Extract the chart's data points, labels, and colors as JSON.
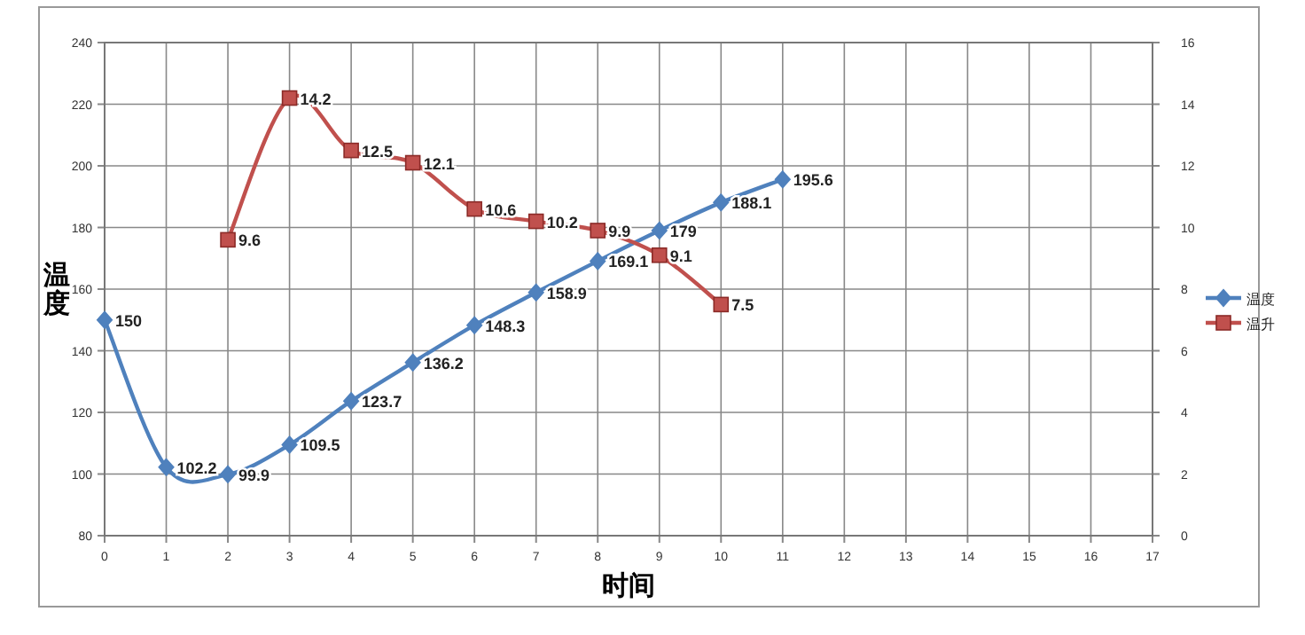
{
  "chart_data": {
    "type": "line",
    "xlabel": "时间",
    "ylabel": "温度",
    "xlim": [
      0,
      17
    ],
    "xticks": [
      0,
      1,
      2,
      3,
      4,
      5,
      6,
      7,
      8,
      9,
      10,
      11,
      12,
      13,
      14,
      15,
      16,
      17
    ],
    "ylim": [
      80,
      240
    ],
    "yticks": [
      80,
      100,
      120,
      140,
      160,
      180,
      200,
      220,
      240
    ],
    "y2lim": [
      0,
      16
    ],
    "y2ticks": [
      0,
      2,
      4,
      6,
      8,
      10,
      12,
      14,
      16
    ],
    "grid": true,
    "legend": "right",
    "data_labels": true,
    "series": [
      {
        "name": "温度",
        "color": "#4f81bd",
        "marker": "diamond",
        "x": [
          0,
          1,
          2,
          3,
          4,
          5,
          6,
          7,
          8,
          9,
          10,
          11
        ],
        "values": [
          150,
          102.2,
          99.9,
          109.5,
          123.7,
          136.2,
          148.3,
          158.9,
          169.1,
          179,
          188.1,
          195.6
        ]
      },
      {
        "name": "温升",
        "color": "#c0504d",
        "marker": "square",
        "axis": "y2",
        "x": [
          2,
          3,
          4,
          5,
          6,
          7,
          8,
          9,
          10
        ],
        "values": [
          9.6,
          14.2,
          12.5,
          12.1,
          10.6,
          10.2,
          9.9,
          9.1,
          7.5
        ]
      }
    ]
  }
}
